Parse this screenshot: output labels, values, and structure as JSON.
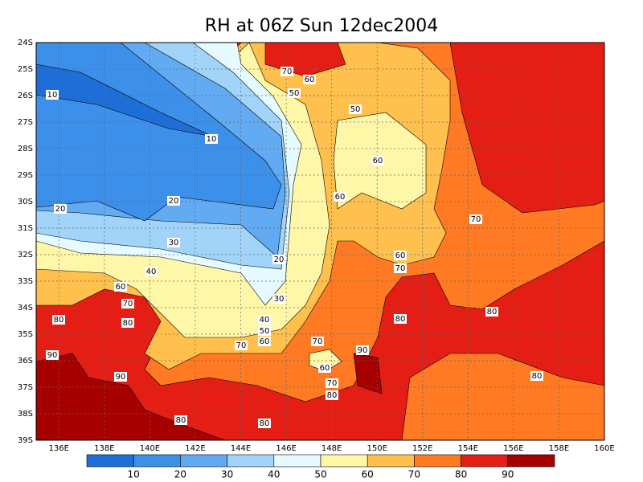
{
  "title": "RH at 06Z Sun 12dec2004",
  "lat_labels": [
    "24S",
    "25S",
    "26S",
    "27S",
    "28S",
    "29S",
    "30S",
    "31S",
    "32S",
    "33S",
    "34S",
    "35S",
    "36S",
    "37S",
    "38S",
    "39S"
  ],
  "lon_labels": [
    "136E",
    "138E",
    "140E",
    "142E",
    "144E",
    "146E",
    "148E",
    "150E",
    "152E",
    "154E",
    "156E",
    "158E",
    "160E"
  ],
  "colorbar": {
    "labels": [
      10,
      20,
      30,
      40,
      50,
      60,
      70,
      80,
      90
    ],
    "colors": [
      "#1e6ed8",
      "#3c90ea",
      "#62aaf2",
      "#a2d4fa",
      "#e6fbff",
      "#fff7a8",
      "#ffc04e",
      "#ff7a22",
      "#e41e14",
      "#a60000"
    ]
  },
  "contour_labels": [
    10,
    10,
    20,
    20,
    20,
    30,
    30,
    40,
    40,
    50,
    50,
    50,
    60,
    60,
    60,
    60,
    60,
    60,
    60,
    70,
    70,
    70,
    70,
    70,
    70,
    70,
    80,
    80,
    80,
    80,
    80,
    80,
    80,
    80,
    90,
    90,
    90
  ]
}
